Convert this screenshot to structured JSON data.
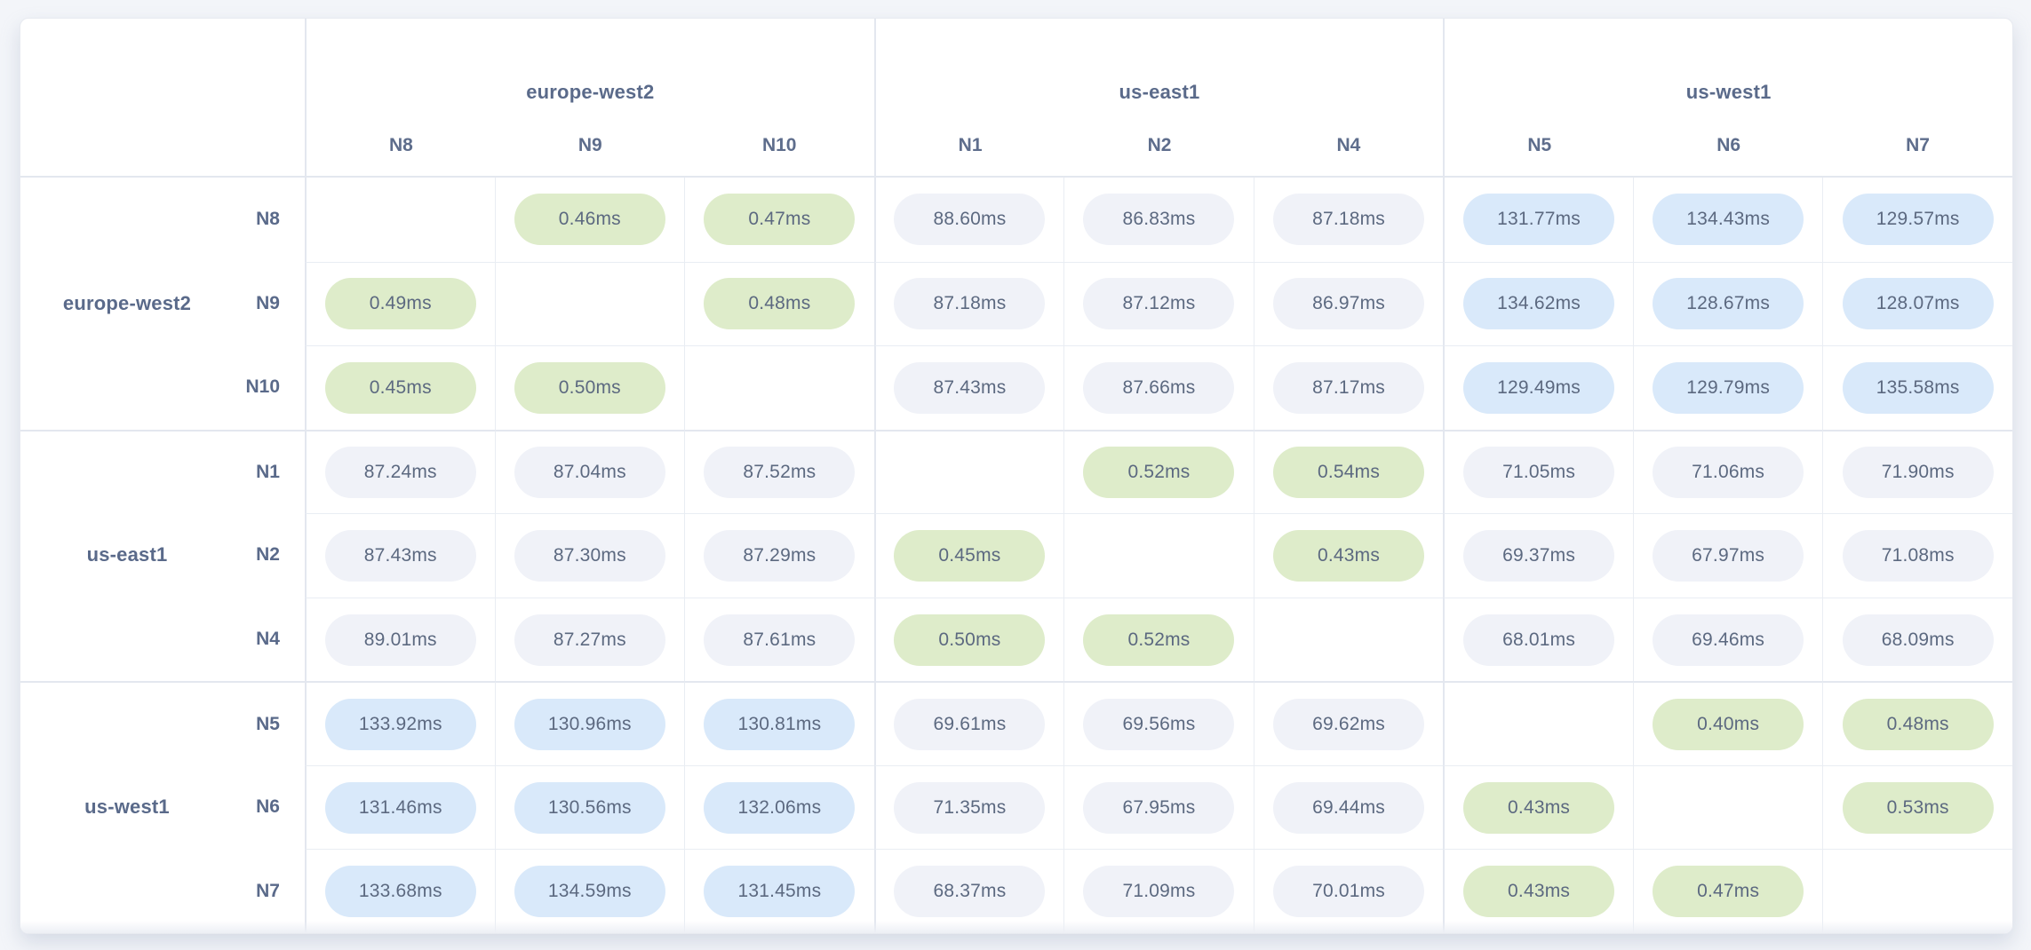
{
  "table": {
    "unit": "ms",
    "column_groups": [
      {
        "region": "europe-west2",
        "nodes": [
          "N8",
          "N9",
          "N10"
        ]
      },
      {
        "region": "us-east1",
        "nodes": [
          "N1",
          "N2",
          "N4"
        ]
      },
      {
        "region": "us-west1",
        "nodes": [
          "N5",
          "N6",
          "N7"
        ]
      }
    ],
    "row_groups": [
      {
        "region": "europe-west2",
        "nodes": [
          "N8",
          "N9",
          "N10"
        ]
      },
      {
        "region": "us-east1",
        "nodes": [
          "N1",
          "N2",
          "N4"
        ]
      },
      {
        "region": "us-west1",
        "nodes": [
          "N5",
          "N6",
          "N7"
        ]
      }
    ],
    "rows": [
      {
        "node": "N8",
        "region": "europe-west2",
        "values": [
          "",
          "0.46ms",
          "0.47ms",
          "88.60ms",
          "86.83ms",
          "87.18ms",
          "131.77ms",
          "134.43ms",
          "129.57ms"
        ]
      },
      {
        "node": "N9",
        "region": "europe-west2",
        "values": [
          "0.49ms",
          "",
          "0.48ms",
          "87.18ms",
          "87.12ms",
          "86.97ms",
          "134.62ms",
          "128.67ms",
          "128.07ms"
        ]
      },
      {
        "node": "N10",
        "region": "europe-west2",
        "values": [
          "0.45ms",
          "0.50ms",
          "",
          "87.43ms",
          "87.66ms",
          "87.17ms",
          "129.49ms",
          "129.79ms",
          "135.58ms"
        ]
      },
      {
        "node": "N1",
        "region": "us-east1",
        "values": [
          "87.24ms",
          "87.04ms",
          "87.52ms",
          "",
          "0.52ms",
          "0.54ms",
          "71.05ms",
          "71.06ms",
          "71.90ms"
        ]
      },
      {
        "node": "N2",
        "region": "us-east1",
        "values": [
          "87.43ms",
          "87.30ms",
          "87.29ms",
          "0.45ms",
          "",
          "0.43ms",
          "69.37ms",
          "67.97ms",
          "71.08ms"
        ]
      },
      {
        "node": "N4",
        "region": "us-east1",
        "values": [
          "89.01ms",
          "87.27ms",
          "87.61ms",
          "0.50ms",
          "0.52ms",
          "",
          "68.01ms",
          "69.46ms",
          "68.09ms"
        ]
      },
      {
        "node": "N5",
        "region": "us-west1",
        "values": [
          "133.92ms",
          "130.96ms",
          "130.81ms",
          "69.61ms",
          "69.56ms",
          "69.62ms",
          "",
          "0.40ms",
          "0.48ms"
        ]
      },
      {
        "node": "N6",
        "region": "us-west1",
        "values": [
          "131.46ms",
          "130.56ms",
          "132.06ms",
          "71.35ms",
          "67.95ms",
          "69.44ms",
          "0.43ms",
          "",
          "0.53ms"
        ]
      },
      {
        "node": "N7",
        "region": "us-west1",
        "values": [
          "133.68ms",
          "134.59ms",
          "131.45ms",
          "68.37ms",
          "71.09ms",
          "70.01ms",
          "0.43ms",
          "0.47ms",
          ""
        ]
      }
    ]
  },
  "chart_data": {
    "type": "heatmap",
    "unit": "ms",
    "columns": [
      "N8",
      "N9",
      "N10",
      "N1",
      "N2",
      "N4",
      "N5",
      "N6",
      "N7"
    ],
    "column_regions": [
      "europe-west2",
      "europe-west2",
      "europe-west2",
      "us-east1",
      "us-east1",
      "us-east1",
      "us-west1",
      "us-west1",
      "us-west1"
    ],
    "rows": [
      "N8",
      "N9",
      "N10",
      "N1",
      "N2",
      "N4",
      "N5",
      "N6",
      "N7"
    ],
    "row_regions": [
      "europe-west2",
      "europe-west2",
      "europe-west2",
      "us-east1",
      "us-east1",
      "us-east1",
      "us-west1",
      "us-west1",
      "us-west1"
    ],
    "values_ms": [
      [
        null,
        0.46,
        0.47,
        88.6,
        86.83,
        87.18,
        131.77,
        134.43,
        129.57
      ],
      [
        0.49,
        null,
        0.48,
        87.18,
        87.12,
        86.97,
        134.62,
        128.67,
        128.07
      ],
      [
        0.45,
        0.5,
        null,
        87.43,
        87.66,
        87.17,
        129.49,
        129.79,
        135.58
      ],
      [
        87.24,
        87.04,
        87.52,
        null,
        0.52,
        0.54,
        71.05,
        71.06,
        71.9
      ],
      [
        87.43,
        87.3,
        87.29,
        0.45,
        null,
        0.43,
        69.37,
        67.97,
        71.08
      ],
      [
        89.01,
        87.27,
        87.61,
        0.5,
        0.52,
        null,
        68.01,
        69.46,
        68.09
      ],
      [
        133.92,
        130.96,
        130.81,
        69.61,
        69.56,
        69.62,
        null,
        0.4,
        0.48
      ],
      [
        131.46,
        130.56,
        132.06,
        71.35,
        67.95,
        69.44,
        0.43,
        null,
        0.53
      ],
      [
        133.68,
        134.59,
        131.45,
        68.37,
        71.09,
        70.01,
        0.43,
        0.47,
        null
      ]
    ],
    "cell_color_rule": "value < 1ms -> green, value > 100ms -> blue, otherwise gray, diagonal blank"
  },
  "colors": {
    "pill_green": "#deecca",
    "pill_blue": "#d9e9fa",
    "pill_gray": "#f0f2f8",
    "value_text": "#5c6980",
    "header_text": "#5a6a8a",
    "page_background": "#f3f5f9",
    "card_background": "#ffffff"
  }
}
